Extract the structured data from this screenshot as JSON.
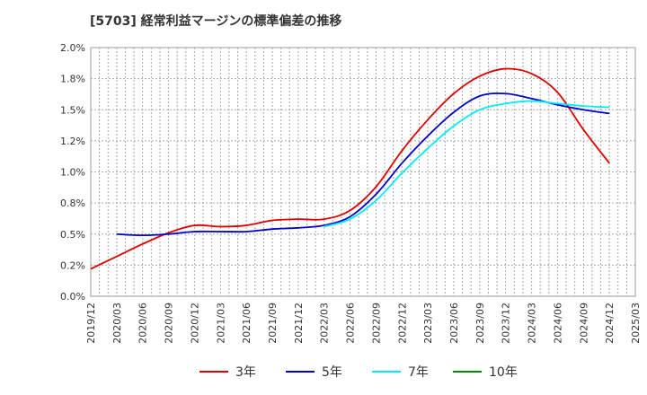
{
  "title": "[5703]  経常利益マージンの標準偏差の推移",
  "chart_data": {
    "type": "line",
    "title": "[5703]  経常利益マージンの標準偏差の推移",
    "xlabel": "",
    "ylabel": "",
    "x_ticks": [
      "2019/12",
      "2020/03",
      "2020/06",
      "2020/09",
      "2020/12",
      "2021/03",
      "2021/06",
      "2021/09",
      "2021/12",
      "2022/03",
      "2022/06",
      "2022/09",
      "2022/12",
      "2023/03",
      "2023/06",
      "2023/09",
      "2023/12",
      "2024/03",
      "2024/06",
      "2024/09",
      "2024/12",
      "2025/03"
    ],
    "y_ticks": [
      "0.0%",
      "0.2%",
      "0.5%",
      "0.8%",
      "1.0%",
      "1.2%",
      "1.5%",
      "1.8%",
      "2.0%"
    ],
    "ylim": [
      0,
      2.0
    ],
    "grid": true,
    "legend_position": "bottom",
    "series": [
      {
        "name": "3年",
        "color": "#dd0000",
        "x": [
          "2019/12",
          "2020/03",
          "2020/06",
          "2020/09",
          "2020/12",
          "2021/03",
          "2021/06",
          "2021/09",
          "2021/12",
          "2022/03",
          "2022/06",
          "2022/09",
          "2022/12",
          "2023/03",
          "2023/06",
          "2023/09",
          "2023/12",
          "2024/03",
          "2024/06",
          "2024/09",
          "2024/12"
        ],
        "values": [
          0.22,
          0.32,
          0.42,
          0.51,
          0.57,
          0.56,
          0.57,
          0.61,
          0.62,
          0.62,
          0.69,
          0.88,
          1.17,
          1.42,
          1.63,
          1.77,
          1.83,
          1.79,
          1.64,
          1.34,
          1.07
        ]
      },
      {
        "name": "5年",
        "color": "#0000cc",
        "x": [
          "2020/03",
          "2020/06",
          "2020/09",
          "2020/12",
          "2021/03",
          "2021/06",
          "2021/09",
          "2021/12",
          "2022/03",
          "2022/06",
          "2022/09",
          "2022/12",
          "2023/03",
          "2023/06",
          "2023/09",
          "2023/12",
          "2024/03",
          "2024/06",
          "2024/09",
          "2024/12"
        ],
        "values": [
          0.5,
          0.49,
          0.5,
          0.52,
          0.52,
          0.52,
          0.54,
          0.55,
          0.57,
          0.64,
          0.82,
          1.07,
          1.29,
          1.48,
          1.61,
          1.63,
          1.59,
          1.54,
          1.5,
          1.47
        ]
      },
      {
        "name": "7年",
        "color": "#00eeee",
        "x": [
          "2022/03",
          "2022/06",
          "2022/09",
          "2022/12",
          "2023/03",
          "2023/06",
          "2023/09",
          "2023/12",
          "2024/03",
          "2024/06",
          "2024/09",
          "2024/12"
        ],
        "values": [
          0.56,
          0.62,
          0.77,
          0.99,
          1.19,
          1.37,
          1.5,
          1.55,
          1.57,
          1.55,
          1.53,
          1.52
        ]
      },
      {
        "name": "10年",
        "color": "#008800",
        "x": [],
        "values": []
      }
    ]
  }
}
